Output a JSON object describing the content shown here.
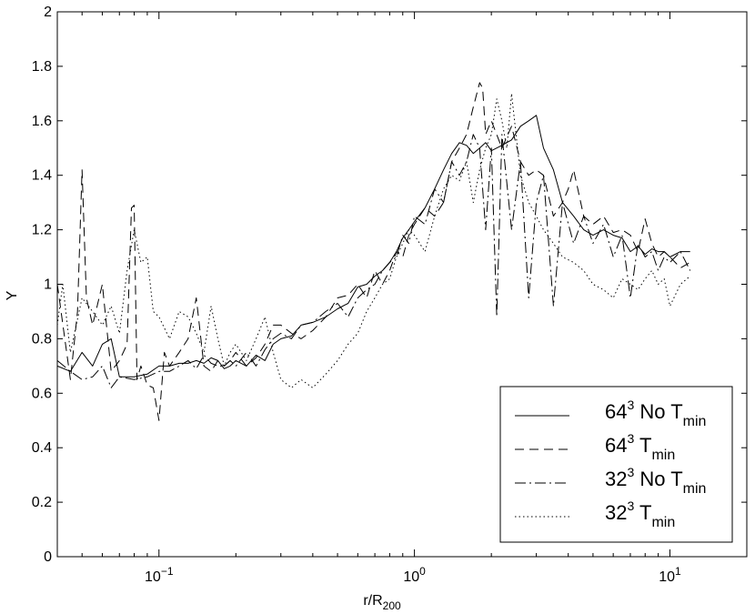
{
  "chart_data": {
    "type": "line",
    "xlabel_main": "r/R",
    "xlabel_sub": "200",
    "ylabel": "Υ",
    "xscale": "log",
    "xlim": [
      0.04,
      20
    ],
    "ylim": [
      0,
      2
    ],
    "grid": false,
    "legend_position": "bottom-right",
    "x_ticks": [
      {
        "value": 0.1,
        "base": "10",
        "exp": "−1"
      },
      {
        "value": 1,
        "base": "10",
        "exp": "0"
      },
      {
        "value": 10,
        "base": "10",
        "exp": "1"
      }
    ],
    "y_ticks": [
      {
        "value": 0,
        "label": "0"
      },
      {
        "value": 0.2,
        "label": "0.2"
      },
      {
        "value": 0.4,
        "label": "0.4"
      },
      {
        "value": 0.6,
        "label": "0.6"
      },
      {
        "value": 0.8,
        "label": "0.8"
      },
      {
        "value": 1,
        "label": "1"
      },
      {
        "value": 1.2,
        "label": "1.2"
      },
      {
        "value": 1.4,
        "label": "1.4"
      },
      {
        "value": 1.6,
        "label": "1.6"
      },
      {
        "value": 1.8,
        "label": "1.8"
      },
      {
        "value": 2,
        "label": "2"
      }
    ],
    "series": [
      {
        "name": "64³ No T_min",
        "legend": {
          "base": "64",
          "sup": "3",
          "mid": " No T",
          "sub": "min"
        },
        "dash": "",
        "x": [
          0.04,
          0.045,
          0.05,
          0.055,
          0.06,
          0.065,
          0.07,
          0.08,
          0.09,
          0.1,
          0.11,
          0.12,
          0.13,
          0.14,
          0.15,
          0.16,
          0.17,
          0.18,
          0.19,
          0.2,
          0.22,
          0.24,
          0.26,
          0.28,
          0.3,
          0.33,
          0.36,
          0.4,
          0.45,
          0.5,
          0.55,
          0.6,
          0.65,
          0.7,
          0.75,
          0.8,
          0.85,
          0.9,
          0.95,
          1.0,
          1.1,
          1.2,
          1.3,
          1.4,
          1.5,
          1.6,
          1.7,
          1.8,
          1.9,
          2.0,
          2.2,
          2.4,
          2.6,
          2.8,
          3.0,
          3.2,
          3.5,
          3.8,
          4.2,
          4.6,
          5.0,
          5.5,
          6.0,
          6.5,
          7.0,
          7.5,
          8.0,
          8.5,
          9.0,
          9.5,
          10,
          11,
          12
        ],
        "y": [
          0.7,
          0.68,
          0.75,
          0.7,
          0.78,
          0.8,
          0.66,
          0.66,
          0.67,
          0.7,
          0.7,
          0.71,
          0.71,
          0.72,
          0.71,
          0.73,
          0.72,
          0.69,
          0.7,
          0.72,
          0.7,
          0.74,
          0.72,
          0.78,
          0.8,
          0.81,
          0.85,
          0.86,
          0.88,
          0.91,
          0.93,
          0.99,
          1.0,
          1.03,
          1.05,
          1.08,
          1.12,
          1.17,
          1.2,
          1.23,
          1.28,
          1.35,
          1.42,
          1.48,
          1.52,
          1.51,
          1.48,
          1.5,
          1.52,
          1.49,
          1.51,
          1.53,
          1.58,
          1.6,
          1.62,
          1.5,
          1.42,
          1.3,
          1.25,
          1.2,
          1.18,
          1.2,
          1.18,
          1.17,
          1.12,
          1.14,
          1.11,
          1.13,
          1.12,
          1.12,
          1.1,
          1.12,
          1.12
        ]
      },
      {
        "name": "64³ T_min",
        "legend": {
          "base": "64",
          "sup": "3",
          "mid": " T",
          "sub": "min"
        },
        "dash": "10,6",
        "x": [
          0.04,
          0.045,
          0.048,
          0.05,
          0.052,
          0.055,
          0.06,
          0.065,
          0.07,
          0.075,
          0.078,
          0.08,
          0.082,
          0.085,
          0.09,
          0.095,
          0.1,
          0.105,
          0.11,
          0.12,
          0.13,
          0.14,
          0.15,
          0.16,
          0.17,
          0.18,
          0.19,
          0.2,
          0.22,
          0.24,
          0.26,
          0.28,
          0.3,
          0.33,
          0.36,
          0.4,
          0.45,
          0.5,
          0.55,
          0.6,
          0.65,
          0.7,
          0.75,
          0.8,
          0.85,
          0.9,
          0.95,
          1.0,
          1.1,
          1.2,
          1.3,
          1.4,
          1.5,
          1.6,
          1.7,
          1.8,
          1.85,
          1.9,
          2.0,
          2.2,
          2.4,
          2.6,
          2.8,
          3.0,
          3.2,
          3.5,
          3.8,
          4.0,
          4.2,
          4.6,
          5.0,
          5.5,
          6.0,
          6.5,
          7.0,
          7.5,
          8.0,
          8.5,
          9.0,
          9.5,
          10,
          11,
          12
        ],
        "y": [
          1.0,
          0.65,
          0.9,
          1.42,
          0.95,
          0.85,
          1.0,
          0.68,
          0.72,
          0.78,
          1.28,
          1.29,
          0.65,
          0.7,
          0.63,
          0.62,
          0.5,
          0.75,
          0.7,
          0.75,
          0.8,
          0.95,
          0.7,
          0.68,
          0.72,
          0.7,
          0.72,
          0.75,
          0.7,
          0.73,
          0.78,
          0.85,
          0.85,
          0.82,
          0.8,
          0.83,
          0.88,
          0.95,
          0.96,
          1.0,
          0.95,
          1.05,
          1.0,
          1.05,
          1.12,
          1.1,
          1.18,
          1.22,
          1.28,
          1.25,
          1.3,
          1.45,
          1.5,
          1.55,
          1.65,
          1.74,
          1.72,
          1.55,
          1.6,
          1.5,
          1.58,
          1.45,
          1.4,
          1.42,
          1.4,
          1.25,
          1.3,
          1.35,
          1.42,
          1.25,
          1.22,
          1.25,
          1.19,
          1.2,
          1.18,
          1.12,
          1.24,
          1.15,
          1.1,
          1.12,
          1.1,
          1.06,
          1.08
        ]
      },
      {
        "name": "32³ No T_min",
        "legend": {
          "base": "32",
          "sup": "3",
          "mid": " No T",
          "sub": "min"
        },
        "dash": "12,4,2,4",
        "x": [
          0.04,
          0.045,
          0.05,
          0.055,
          0.06,
          0.065,
          0.07,
          0.08,
          0.09,
          0.1,
          0.11,
          0.12,
          0.13,
          0.14,
          0.15,
          0.16,
          0.17,
          0.18,
          0.19,
          0.2,
          0.22,
          0.24,
          0.26,
          0.28,
          0.3,
          0.33,
          0.36,
          0.4,
          0.45,
          0.5,
          0.55,
          0.6,
          0.65,
          0.7,
          0.75,
          0.8,
          0.85,
          0.9,
          0.95,
          1.0,
          1.1,
          1.2,
          1.3,
          1.4,
          1.5,
          1.6,
          1.7,
          1.8,
          1.9,
          2.0,
          2.1,
          2.2,
          2.4,
          2.6,
          2.8,
          3.0,
          3.2,
          3.5,
          3.8,
          4.2,
          4.6,
          5.0,
          5.5,
          6.0,
          6.5,
          7.0,
          7.5,
          8.0,
          8.5,
          9.0,
          9.5,
          10,
          11,
          12
        ],
        "y": [
          0.72,
          0.68,
          0.65,
          0.66,
          0.7,
          0.62,
          0.66,
          0.65,
          0.66,
          0.68,
          0.68,
          0.7,
          0.72,
          0.69,
          0.74,
          0.71,
          0.7,
          0.7,
          0.72,
          0.7,
          0.75,
          0.7,
          0.76,
          0.8,
          0.82,
          0.8,
          0.85,
          0.86,
          0.9,
          0.93,
          0.88,
          0.95,
          0.98,
          1.0,
          1.05,
          1.08,
          1.1,
          1.18,
          1.15,
          1.25,
          1.22,
          1.35,
          1.3,
          1.45,
          1.4,
          1.45,
          1.55,
          1.5,
          1.2,
          1.5,
          0.88,
          1.55,
          1.2,
          1.45,
          0.95,
          1.3,
          1.4,
          0.92,
          1.3,
          1.15,
          1.25,
          1.15,
          1.22,
          1.1,
          1.18,
          0.95,
          1.15,
          1.1,
          1.12,
          1.05,
          1.1,
          1.08,
          1.12,
          1.05
        ]
      },
      {
        "name": "32³ T_min",
        "legend": {
          "base": "32",
          "sup": "3",
          "mid": " T",
          "sub": "min"
        },
        "dash": "1.5,3",
        "x": [
          0.04,
          0.042,
          0.045,
          0.05,
          0.055,
          0.06,
          0.065,
          0.07,
          0.075,
          0.08,
          0.085,
          0.09,
          0.095,
          0.1,
          0.11,
          0.12,
          0.13,
          0.14,
          0.15,
          0.16,
          0.17,
          0.18,
          0.19,
          0.2,
          0.22,
          0.24,
          0.26,
          0.28,
          0.3,
          0.33,
          0.36,
          0.4,
          0.45,
          0.5,
          0.55,
          0.6,
          0.65,
          0.7,
          0.75,
          0.8,
          0.85,
          0.9,
          0.95,
          1.0,
          1.1,
          1.2,
          1.3,
          1.4,
          1.5,
          1.6,
          1.7,
          1.8,
          1.9,
          2.0,
          2.1,
          2.2,
          2.3,
          2.4,
          2.6,
          2.8,
          3.0,
          3.2,
          3.5,
          3.8,
          4.2,
          4.6,
          5.0,
          5.5,
          6.0,
          6.5,
          7.0,
          7.5,
          8.0,
          8.5,
          9.0,
          9.5,
          10,
          11,
          12
        ],
        "y": [
          0.85,
          1.0,
          0.75,
          0.95,
          0.9,
          0.85,
          0.92,
          0.82,
          1.05,
          1.2,
          1.08,
          1.1,
          0.9,
          0.88,
          0.8,
          0.9,
          0.88,
          0.82,
          0.75,
          0.92,
          0.8,
          0.7,
          0.75,
          0.78,
          0.72,
          0.8,
          0.88,
          0.75,
          0.65,
          0.62,
          0.65,
          0.62,
          0.67,
          0.72,
          0.78,
          0.82,
          0.9,
          0.95,
          1.0,
          1.02,
          1.1,
          1.15,
          1.2,
          1.18,
          1.12,
          1.25,
          1.35,
          1.4,
          1.38,
          1.45,
          1.3,
          1.42,
          1.5,
          1.55,
          1.68,
          1.6,
          1.5,
          1.7,
          1.4,
          1.3,
          1.25,
          1.2,
          1.15,
          1.1,
          1.08,
          1.05,
          1.0,
          0.98,
          0.95,
          1.02,
          1.0,
          0.98,
          1.02,
          1.05,
          1.0,
          1.02,
          0.92,
          1.0,
          1.03
        ]
      }
    ]
  }
}
